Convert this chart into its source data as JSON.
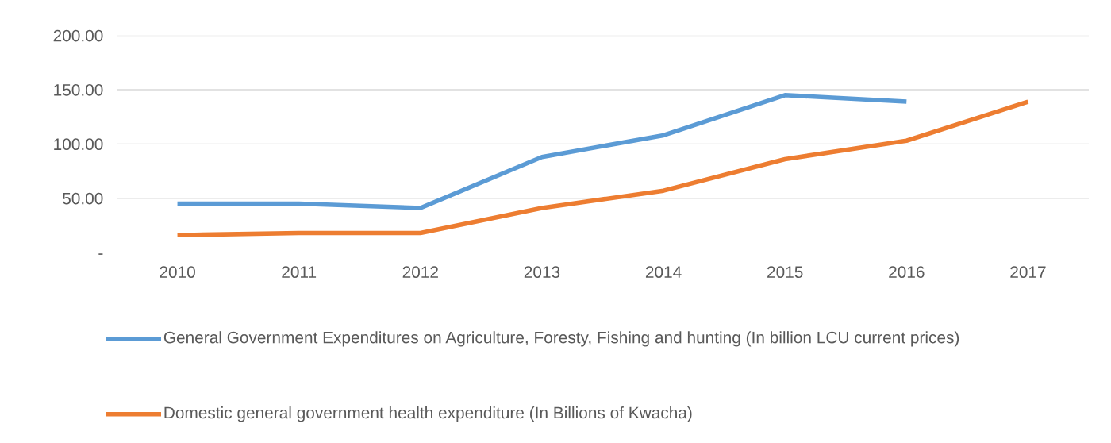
{
  "chart_data": {
    "type": "line",
    "categories": [
      "2010",
      "2011",
      "2012",
      "2013",
      "2014",
      "2015",
      "2016",
      "2017"
    ],
    "series": [
      {
        "name": "General Government Expenditures on Agriculture, Foresty, Fishing and hunting (In billion LCU current prices)",
        "color": "#5b9bd5",
        "values": [
          45,
          45,
          41,
          88,
          108,
          145,
          139,
          null
        ]
      },
      {
        "name": "Domestic general government health expenditure (In Billions of Kwacha)",
        "color": "#ed7d31",
        "values": [
          16,
          18,
          18,
          41,
          57,
          86,
          103,
          139
        ]
      }
    ],
    "ylim": [
      0,
      200
    ],
    "yticks": [
      {
        "value": 0,
        "label": "-"
      },
      {
        "value": 50,
        "label": "50.00"
      },
      {
        "value": 100,
        "label": "100.00"
      },
      {
        "value": 150,
        "label": "150.00"
      },
      {
        "value": 200,
        "label": "200.00"
      }
    ],
    "grid": "y",
    "legend": "bottom",
    "marker": "none",
    "line_style": "solid"
  }
}
